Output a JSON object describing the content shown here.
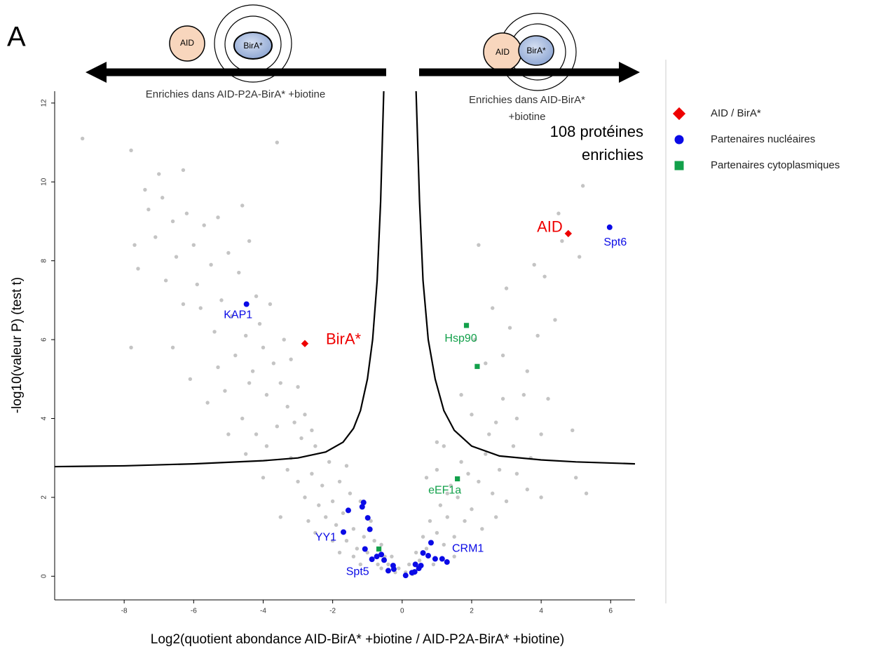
{
  "chart_data": {
    "type": "scatter",
    "panel_label": "A",
    "x_label": "Log2(quotient abondance AID-BirA* +biotine / AID-P2A-BirA* +biotine)",
    "y_label": "-log10(valeur P) (test t)",
    "arrow_left_label": [
      "Enrichies dans AID-P2A-BirA* +biotine"
    ],
    "arrow_right_label": [
      "Enrichies dans AID-BirA*",
      "+biotine"
    ],
    "icon_left_labels": [
      "AID",
      "BirA*"
    ],
    "icon_right_labels": [
      "AID",
      "BirA*"
    ],
    "count_label": [
      "108 protéines",
      "enrichies"
    ],
    "xlim": [
      -10,
      6.7
    ],
    "ylim": [
      -0.6,
      12.3
    ],
    "xticks": [
      -8,
      -6,
      -4,
      -2,
      0,
      2,
      4,
      6
    ],
    "yticks": [
      0,
      2,
      4,
      6,
      8,
      10,
      12
    ],
    "series": [
      {
        "color": "#c4c4c4",
        "marker": "circle",
        "x": [
          -9.2,
          -7.8,
          -7.7,
          -7.6,
          -7.4,
          -7.3,
          -7.1,
          -7.0,
          -6.9,
          -6.8,
          -6.6,
          -6.5,
          -6.3,
          -6.2,
          -6.0,
          -5.9,
          -5.8,
          -5.7,
          -5.5,
          -5.4,
          -5.3,
          -5.2,
          -5.0,
          -4.9,
          -4.8,
          -4.7,
          -4.6,
          -4.5,
          -4.4,
          -4.3,
          -4.2,
          -4.1,
          -4.0,
          -3.9,
          -3.8,
          -3.7,
          -3.6,
          -3.5,
          -3.4,
          -3.3,
          -3.2,
          -3.1,
          -3.0,
          -2.9,
          -2.8,
          -2.6,
          -2.5,
          -6.6,
          -7.8,
          -6.1,
          -5.6,
          -5.1,
          -4.6,
          -4.2,
          -3.9,
          -6.3,
          -5.3,
          -4.4,
          -3.6,
          -5.0,
          -3.3,
          -3.0,
          -2.8,
          -2.6,
          -2.4,
          -2.3,
          -2.2,
          -2.1,
          -2.0,
          -1.9,
          -1.8,
          -1.7,
          -1.6,
          -1.5,
          -1.4,
          -1.3,
          -1.2,
          -1.1,
          -1.0,
          -0.9,
          -0.8,
          -0.7,
          -0.6,
          -0.5,
          -0.4,
          -0.3,
          -0.2,
          -0.1,
          -2.5,
          -2.0,
          -1.8,
          -1.2,
          -3.5,
          -4.0,
          -2.7,
          -1.6,
          -3.2,
          -4.5,
          -0.6,
          -1.4,
          0.1,
          0.2,
          0.3,
          0.4,
          0.5,
          0.6,
          0.7,
          0.8,
          0.9,
          1.0,
          1.1,
          1.2,
          1.3,
          1.4,
          1.5,
          1.6,
          1.7,
          1.8,
          1.9,
          2.0,
          2.2,
          2.4,
          2.6,
          2.8,
          3.0,
          3.3,
          3.6,
          4.0,
          0.7,
          1.2,
          1.0,
          2.3,
          1.5,
          2.7,
          3.2,
          2.5,
          2.0,
          2.9,
          3.3,
          2.4,
          2.9,
          3.6,
          3.9,
          3.5,
          4.0,
          3.8,
          3.1,
          2.6,
          4.1,
          4.6,
          5.1,
          5.2,
          4.5,
          2.2,
          4.9,
          5.0,
          5.3,
          4.2,
          3.0,
          4.4,
          2.1,
          1.7,
          2.7,
          3.7,
          1.0,
          1.3
        ],
        "y": [
          11.1,
          10.8,
          8.4,
          7.8,
          9.8,
          9.3,
          8.6,
          10.2,
          9.6,
          7.5,
          9.0,
          8.1,
          10.3,
          9.2,
          8.4,
          7.4,
          6.8,
          8.9,
          7.9,
          6.2,
          9.1,
          7.0,
          8.2,
          6.6,
          5.6,
          7.7,
          9.4,
          6.1,
          8.5,
          5.2,
          7.1,
          6.4,
          5.8,
          4.6,
          6.9,
          5.4,
          11.0,
          4.9,
          6.0,
          4.3,
          5.5,
          3.9,
          4.8,
          3.5,
          4.1,
          3.7,
          3.3,
          5.8,
          5.8,
          5.0,
          4.4,
          4.7,
          4.0,
          3.6,
          3.3,
          6.9,
          5.3,
          4.9,
          3.8,
          3.6,
          2.7,
          2.4,
          2.0,
          2.6,
          1.8,
          2.3,
          1.5,
          2.9,
          1.9,
          1.3,
          2.4,
          1.6,
          0.9,
          2.1,
          1.2,
          0.7,
          1.9,
          1.0,
          0.6,
          1.4,
          0.9,
          0.3,
          0.8,
          0.5,
          0.3,
          0.5,
          0.1,
          0.2,
          1.1,
          0.9,
          0.6,
          0.3,
          1.5,
          2.5,
          1.4,
          2.8,
          3.0,
          3.1,
          0.2,
          0.5,
          0.1,
          0.3,
          0.05,
          0.6,
          0.4,
          1.0,
          0.7,
          1.4,
          0.3,
          1.1,
          1.8,
          0.8,
          1.5,
          2.3,
          1.0,
          2.0,
          2.9,
          1.4,
          2.6,
          1.7,
          2.4,
          3.1,
          2.1,
          2.7,
          1.9,
          2.6,
          2.2,
          2.0,
          2.5,
          3.3,
          2.7,
          1.2,
          0.5,
          1.5,
          3.3,
          3.6,
          4.1,
          4.5,
          4.0,
          5.4,
          5.6,
          5.2,
          6.1,
          4.6,
          3.6,
          7.9,
          6.3,
          6.8,
          7.6,
          8.5,
          8.1,
          9.9,
          9.2,
          8.4,
          3.7,
          2.5,
          2.1,
          4.5,
          7.3,
          6.5,
          6.0,
          4.6,
          3.9,
          3.0,
          3.4,
          2.1
        ]
      },
      {
        "name": "AID / BirA*",
        "color": "#ee0000",
        "marker": "diamond",
        "x": [
          4.78,
          -2.8
        ],
        "y": [
          8.69,
          5.9
        ],
        "point_labels": [
          "AID",
          "BirA*"
        ]
      },
      {
        "name": "Partenaires nucléaires",
        "color": "#0a0ae6",
        "marker": "circle",
        "x": [
          -4.48,
          5.97,
          -1.69,
          -0.87,
          0.83,
          -1.55,
          -1.15,
          -1.11,
          -0.99,
          -0.93,
          -1.07,
          -0.73,
          -0.6,
          -0.52,
          -0.4,
          -0.26,
          -0.24,
          0.1,
          0.28,
          0.36,
          0.38,
          0.48,
          0.54,
          0.6,
          0.75,
          0.95,
          1.15,
          1.29
        ],
        "y": [
          6.9,
          8.85,
          1.12,
          0.43,
          0.85,
          1.67,
          1.76,
          1.87,
          1.48,
          1.19,
          0.69,
          0.5,
          0.55,
          0.41,
          0.14,
          0.27,
          0.18,
          0.02,
          0.09,
          0.11,
          0.3,
          0.2,
          0.27,
          0.59,
          0.52,
          0.44,
          0.44,
          0.36
        ],
        "point_labels": [
          "KAP1",
          "Spt6",
          "YY1",
          "Spt5",
          "CRM1",
          null,
          null,
          null,
          null,
          null,
          null,
          null,
          null,
          null,
          null,
          null,
          null,
          null,
          null,
          null,
          null,
          null,
          null,
          null,
          null,
          null,
          null,
          null
        ]
      },
      {
        "name": "Partenaires cytoplasmiques",
        "color": "#12a04a",
        "marker": "square",
        "x": [
          1.85,
          2.16,
          1.59,
          -0.67
        ],
        "y": [
          6.36,
          5.32,
          2.47,
          0.69
        ],
        "point_labels": [
          "Hsp90",
          null,
          "eEF1a",
          null
        ]
      }
    ],
    "curves": [
      {
        "color": "#000000",
        "x": [
          -10,
          -8,
          -6,
          -4,
          -3,
          -2.2,
          -1.7,
          -1.4,
          -1.2,
          -1.0,
          -0.85,
          -0.72,
          -0.62,
          -0.53
        ],
        "y": [
          2.78,
          2.8,
          2.85,
          2.93,
          3.0,
          3.15,
          3.4,
          3.75,
          4.2,
          5.0,
          6.0,
          7.5,
          9.5,
          12.3
        ]
      },
      {
        "color": "#000000",
        "x": [
          0.4,
          0.5,
          0.6,
          0.75,
          0.95,
          1.2,
          1.5,
          2.0,
          2.8,
          4,
          5,
          6.7
        ],
        "y": [
          12.3,
          9.5,
          7.5,
          6.0,
          5.0,
          4.2,
          3.7,
          3.3,
          3.05,
          2.95,
          2.9,
          2.85
        ]
      }
    ]
  }
}
